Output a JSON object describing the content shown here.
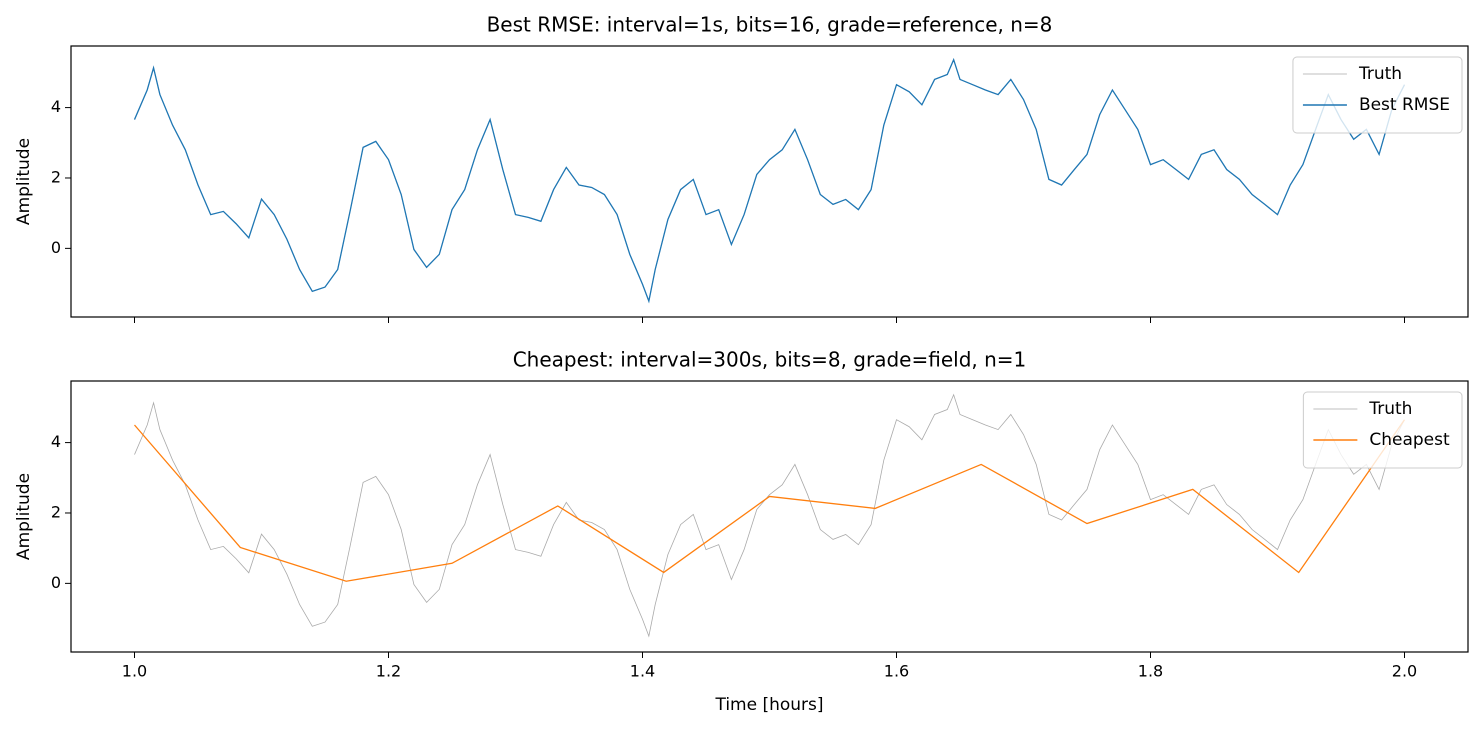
{
  "chart_data": [
    {
      "type": "line",
      "title": "Best RMSE: interval=1s, bits=16, grade=reference, n=8",
      "ylabel": "Amplitude",
      "xlim": [
        0.95,
        2.05
      ],
      "ylim": [
        -1.95,
        5.75
      ],
      "xticks": [
        1,
        1.2,
        1.4,
        1.6,
        1.8,
        2
      ],
      "yticks": [
        0,
        2,
        4
      ],
      "legend": "upper right",
      "series": [
        {
          "name": "Truth",
          "color": "#aaaaaa",
          "x": [
            1.0,
            1.01,
            1.015,
            1.02,
            1.03,
            1.04,
            1.05,
            1.06,
            1.07,
            1.08,
            1.09,
            1.1,
            1.11,
            1.12,
            1.13,
            1.14,
            1.15,
            1.16,
            1.17,
            1.18,
            1.19,
            1.2,
            1.21,
            1.22,
            1.23,
            1.24,
            1.25,
            1.26,
            1.27,
            1.28,
            1.29,
            1.3,
            1.31,
            1.32,
            1.33,
            1.34,
            1.35,
            1.36,
            1.37,
            1.38,
            1.39,
            1.4,
            1.405,
            1.41,
            1.42,
            1.43,
            1.44,
            1.45,
            1.46,
            1.47,
            1.48,
            1.49,
            1.5,
            1.51,
            1.52,
            1.53,
            1.54,
            1.55,
            1.56,
            1.57,
            1.58,
            1.59,
            1.6,
            1.61,
            1.62,
            1.63,
            1.64,
            1.645,
            1.65,
            1.66,
            1.67,
            1.68,
            1.69,
            1.7,
            1.71,
            1.72,
            1.73,
            1.74,
            1.75,
            1.76,
            1.77,
            1.78,
            1.79,
            1.8,
            1.81,
            1.82,
            1.83,
            1.84,
            1.85,
            1.86,
            1.87,
            1.88,
            1.89,
            1.9,
            1.91,
            1.92,
            1.93,
            1.94,
            1.95,
            1.96,
            1.97,
            1.98,
            1.99,
            2.0
          ],
          "values": [
            3.66,
            4.5,
            5.13,
            4.37,
            3.5,
            2.8,
            1.8,
            0.96,
            1.05,
            0.7,
            0.3,
            1.4,
            0.96,
            0.26,
            -0.6,
            -1.22,
            -1.1,
            -0.6,
            1.1,
            2.87,
            3.04,
            2.52,
            1.53,
            -0.03,
            -0.54,
            -0.17,
            1.1,
            1.67,
            2.8,
            3.66,
            2.24,
            0.96,
            0.88,
            0.77,
            1.67,
            2.3,
            1.8,
            1.73,
            1.53,
            0.96,
            -0.17,
            -1.02,
            -1.5,
            -0.6,
            0.82,
            1.67,
            1.96,
            0.96,
            1.1,
            0.11,
            0.96,
            2.1,
            2.52,
            2.8,
            3.38,
            2.52,
            1.53,
            1.25,
            1.39,
            1.1,
            1.67,
            3.5,
            4.65,
            4.45,
            4.08,
            4.8,
            4.94,
            5.36,
            4.8,
            4.65,
            4.5,
            4.37,
            4.8,
            4.23,
            3.38,
            1.96,
            1.8,
            2.24,
            2.67,
            3.8,
            4.5,
            3.94,
            3.38,
            2.38,
            2.52,
            2.24,
            1.96,
            2.67,
            2.8,
            2.24,
            1.96,
            1.53,
            1.25,
            0.96,
            1.8,
            2.38,
            3.38,
            4.37,
            3.66,
            3.1,
            3.38,
            2.67,
            3.94,
            4.65
          ]
        },
        {
          "name": "Best RMSE",
          "color": "#1f77b4",
          "x": [
            1.0,
            1.01,
            1.015,
            1.02,
            1.03,
            1.04,
            1.05,
            1.06,
            1.07,
            1.08,
            1.09,
            1.1,
            1.11,
            1.12,
            1.13,
            1.14,
            1.15,
            1.16,
            1.17,
            1.18,
            1.19,
            1.2,
            1.21,
            1.22,
            1.23,
            1.24,
            1.25,
            1.26,
            1.27,
            1.28,
            1.29,
            1.3,
            1.31,
            1.32,
            1.33,
            1.34,
            1.35,
            1.36,
            1.37,
            1.38,
            1.39,
            1.4,
            1.405,
            1.41,
            1.42,
            1.43,
            1.44,
            1.45,
            1.46,
            1.47,
            1.48,
            1.49,
            1.5,
            1.51,
            1.52,
            1.53,
            1.54,
            1.55,
            1.56,
            1.57,
            1.58,
            1.59,
            1.6,
            1.61,
            1.62,
            1.63,
            1.64,
            1.645,
            1.65,
            1.66,
            1.67,
            1.68,
            1.69,
            1.7,
            1.71,
            1.72,
            1.73,
            1.74,
            1.75,
            1.76,
            1.77,
            1.78,
            1.79,
            1.8,
            1.81,
            1.82,
            1.83,
            1.84,
            1.85,
            1.86,
            1.87,
            1.88,
            1.89,
            1.9,
            1.91,
            1.92,
            1.93,
            1.94,
            1.95,
            1.96,
            1.97,
            1.98,
            1.99,
            2.0
          ],
          "values": [
            3.66,
            4.5,
            5.13,
            4.37,
            3.5,
            2.8,
            1.8,
            0.96,
            1.05,
            0.7,
            0.3,
            1.4,
            0.96,
            0.26,
            -0.6,
            -1.22,
            -1.1,
            -0.6,
            1.1,
            2.87,
            3.04,
            2.52,
            1.53,
            -0.03,
            -0.54,
            -0.17,
            1.1,
            1.67,
            2.8,
            3.66,
            2.24,
            0.96,
            0.88,
            0.77,
            1.67,
            2.3,
            1.8,
            1.73,
            1.53,
            0.96,
            -0.17,
            -1.02,
            -1.5,
            -0.6,
            0.82,
            1.67,
            1.96,
            0.96,
            1.1,
            0.11,
            0.96,
            2.1,
            2.52,
            2.8,
            3.38,
            2.52,
            1.53,
            1.25,
            1.39,
            1.1,
            1.67,
            3.5,
            4.65,
            4.45,
            4.08,
            4.8,
            4.94,
            5.36,
            4.8,
            4.65,
            4.5,
            4.37,
            4.8,
            4.23,
            3.38,
            1.96,
            1.8,
            2.24,
            2.67,
            3.8,
            4.5,
            3.94,
            3.38,
            2.38,
            2.52,
            2.24,
            1.96,
            2.67,
            2.8,
            2.24,
            1.96,
            1.53,
            1.25,
            0.96,
            1.8,
            2.38,
            3.38,
            4.37,
            3.66,
            3.1,
            3.38,
            2.67,
            3.94,
            4.65
          ]
        }
      ]
    },
    {
      "type": "line",
      "title": "Cheapest: interval=300s, bits=8, grade=field, n=1",
      "ylabel": "Amplitude",
      "xlabel": "Time [hours]",
      "xlim": [
        0.95,
        2.05
      ],
      "ylim": [
        -1.95,
        5.75
      ],
      "xticks": [
        {
          "value": 1,
          "label": "1.0"
        },
        1.2,
        1.4,
        1.6,
        1.8,
        {
          "value": 2,
          "label": "2.0"
        }
      ],
      "yticks": [
        0,
        2,
        4
      ],
      "legend": "upper right",
      "series": [
        {
          "name": "Truth",
          "color": "#aaaaaa",
          "x": [
            1.0,
            1.01,
            1.015,
            1.02,
            1.03,
            1.04,
            1.05,
            1.06,
            1.07,
            1.08,
            1.09,
            1.1,
            1.11,
            1.12,
            1.13,
            1.14,
            1.15,
            1.16,
            1.17,
            1.18,
            1.19,
            1.2,
            1.21,
            1.22,
            1.23,
            1.24,
            1.25,
            1.26,
            1.27,
            1.28,
            1.29,
            1.3,
            1.31,
            1.32,
            1.33,
            1.34,
            1.35,
            1.36,
            1.37,
            1.38,
            1.39,
            1.4,
            1.405,
            1.41,
            1.42,
            1.43,
            1.44,
            1.45,
            1.46,
            1.47,
            1.48,
            1.49,
            1.5,
            1.51,
            1.52,
            1.53,
            1.54,
            1.55,
            1.56,
            1.57,
            1.58,
            1.59,
            1.6,
            1.61,
            1.62,
            1.63,
            1.64,
            1.645,
            1.65,
            1.66,
            1.67,
            1.68,
            1.69,
            1.7,
            1.71,
            1.72,
            1.73,
            1.74,
            1.75,
            1.76,
            1.77,
            1.78,
            1.79,
            1.8,
            1.81,
            1.82,
            1.83,
            1.84,
            1.85,
            1.86,
            1.87,
            1.88,
            1.89,
            1.9,
            1.91,
            1.92,
            1.93,
            1.94,
            1.95,
            1.96,
            1.97,
            1.98,
            1.99,
            2.0
          ],
          "values": [
            3.66,
            4.5,
            5.13,
            4.37,
            3.5,
            2.8,
            1.8,
            0.96,
            1.05,
            0.7,
            0.3,
            1.4,
            0.96,
            0.26,
            -0.6,
            -1.22,
            -1.1,
            -0.6,
            1.1,
            2.87,
            3.04,
            2.52,
            1.53,
            -0.03,
            -0.54,
            -0.17,
            1.1,
            1.67,
            2.8,
            3.66,
            2.24,
            0.96,
            0.88,
            0.77,
            1.67,
            2.3,
            1.8,
            1.73,
            1.53,
            0.96,
            -0.17,
            -1.02,
            -1.5,
            -0.6,
            0.82,
            1.67,
            1.96,
            0.96,
            1.1,
            0.11,
            0.96,
            2.1,
            2.52,
            2.8,
            3.38,
            2.52,
            1.53,
            1.25,
            1.39,
            1.1,
            1.67,
            3.5,
            4.65,
            4.45,
            4.08,
            4.8,
            4.94,
            5.36,
            4.8,
            4.65,
            4.5,
            4.37,
            4.8,
            4.23,
            3.38,
            1.96,
            1.8,
            2.24,
            2.67,
            3.8,
            4.5,
            3.94,
            3.38,
            2.38,
            2.52,
            2.24,
            1.96,
            2.67,
            2.8,
            2.24,
            1.96,
            1.53,
            1.25,
            0.96,
            1.8,
            2.38,
            3.38,
            4.37,
            3.66,
            3.1,
            3.38,
            2.67,
            3.94,
            4.65
          ]
        },
        {
          "name": "Cheapest",
          "color": "#ff7f0e",
          "x": [
            1.0,
            1.0833,
            1.1667,
            1.25,
            1.3333,
            1.4167,
            1.5,
            1.5833,
            1.6667,
            1.75,
            1.8333,
            1.9167,
            2.0
          ],
          "values": [
            4.5,
            1.02,
            0.06,
            0.57,
            2.2,
            0.31,
            2.47,
            2.13,
            3.38,
            1.7,
            2.67,
            0.31,
            4.65
          ]
        }
      ]
    }
  ]
}
